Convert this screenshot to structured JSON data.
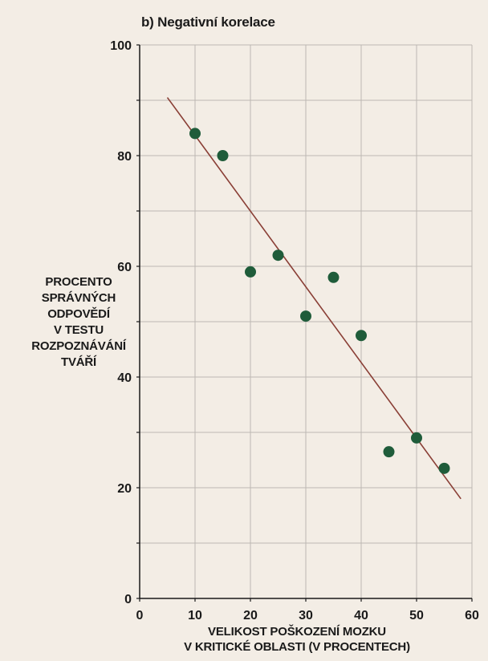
{
  "chart_data": {
    "type": "scatter",
    "title": "b) Negativní korelace",
    "ylabel_lines": [
      "PROCENTO",
      "SPRÁVNÝCH",
      "ODPOVĚDÍ",
      "V TESTU",
      "ROZPOZNÁVÁNÍ",
      "TVÁŘÍ"
    ],
    "xlabel_lines": [
      "VELIKOST POŠKOZENÍ MOZKU",
      "V KRITICKÉ OBLASTI (V PROCENTECH)"
    ],
    "xlim": [
      0,
      60
    ],
    "ylim": [
      0,
      100
    ],
    "x_ticks": [
      0,
      10,
      20,
      30,
      40,
      50,
      60
    ],
    "x_tick_labels": [
      "0",
      "10",
      "20",
      "30",
      "40",
      "50",
      "60"
    ],
    "y_ticks": [
      0,
      20,
      40,
      60,
      80,
      100
    ],
    "y_tick_labels": [
      "0",
      "20",
      "40",
      "60",
      "80",
      "100"
    ],
    "grid": true,
    "points": [
      {
        "x": 10,
        "y": 84
      },
      {
        "x": 15,
        "y": 80
      },
      {
        "x": 20,
        "y": 59
      },
      {
        "x": 25,
        "y": 62
      },
      {
        "x": 30,
        "y": 51
      },
      {
        "x": 35,
        "y": 58
      },
      {
        "x": 40,
        "y": 47.5
      },
      {
        "x": 45,
        "y": 26.5
      },
      {
        "x": 50,
        "y": 29
      },
      {
        "x": 55,
        "y": 23.5
      }
    ],
    "trend_line": {
      "x": [
        5,
        58
      ],
      "y": [
        90.5,
        18
      ]
    },
    "colors": {
      "point": "#1f5c3a",
      "trend_line": "#8a3f36",
      "grid": "#bdb8b2",
      "axis": "#1a1a1a"
    }
  }
}
